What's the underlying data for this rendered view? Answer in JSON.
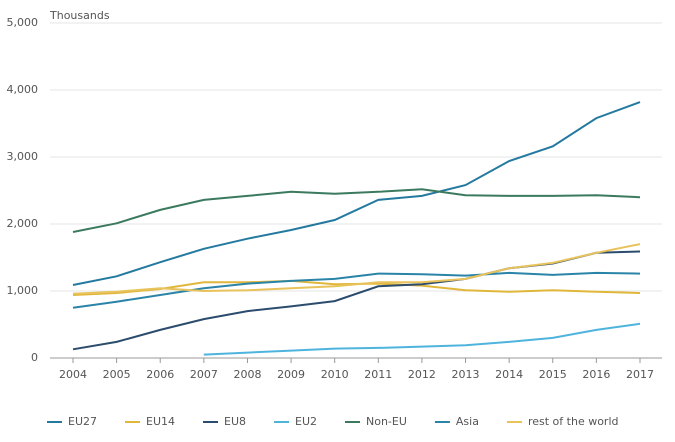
{
  "chart_data": {
    "type": "line",
    "title": "Thousands",
    "categories": [
      "2004",
      "2005",
      "2006",
      "2007",
      "2008",
      "2009",
      "2010",
      "2011",
      "2012",
      "2013",
      "2014",
      "2015",
      "2016",
      "2017"
    ],
    "ylim": [
      0,
      5000
    ],
    "yticks": [
      0,
      {
        "value": 1000,
        "label": "1,000"
      },
      {
        "value": 2000,
        "label": "2,000"
      },
      {
        "value": 3000,
        "label": "3,000"
      },
      {
        "value": 4000,
        "label": "4,000"
      },
      {
        "value": 5000,
        "label": "5,000"
      }
    ],
    "grid": true,
    "legend": "bottom",
    "series": [
      {
        "name": "EU27",
        "color": "#23799f",
        "values": [
          1090,
          1220,
          1430,
          1630,
          1780,
          1910,
          2060,
          2360,
          2420,
          2580,
          2940,
          3160,
          3580,
          3820
        ]
      },
      {
        "name": "EU14",
        "color": "#e0b73a",
        "values": [
          940,
          970,
          1030,
          1130,
          1130,
          1150,
          1100,
          1110,
          1080,
          1010,
          990,
          1010,
          990,
          970
        ]
      },
      {
        "name": "EU8",
        "color": "#2c4c6e",
        "values": [
          130,
          240,
          420,
          580,
          700,
          770,
          850,
          1070,
          1100,
          1180,
          1340,
          1410,
          1570,
          1590
        ]
      },
      {
        "name": "EU2",
        "color": "#4fb4dd",
        "values": [
          null,
          null,
          null,
          50,
          80,
          110,
          140,
          150,
          170,
          190,
          240,
          300,
          420,
          510
        ]
      },
      {
        "name": "Non-EU",
        "color": "#3b7a5e",
        "values": [
          1880,
          2010,
          2210,
          2360,
          2420,
          2480,
          2450,
          2480,
          2520,
          2430,
          2420,
          2420,
          2430,
          2400
        ]
      },
      {
        "name": "Asia",
        "color": "#2a84a8",
        "values": [
          750,
          840,
          940,
          1040,
          1110,
          1150,
          1180,
          1260,
          1250,
          1230,
          1270,
          1240,
          1270,
          1260
        ]
      },
      {
        "name": "rest of the world",
        "color": "#e8c25a",
        "values": [
          960,
          990,
          1040,
          1000,
          1010,
          1040,
          1070,
          1130,
          1130,
          1180,
          1340,
          1420,
          1570,
          1700
        ]
      }
    ]
  }
}
